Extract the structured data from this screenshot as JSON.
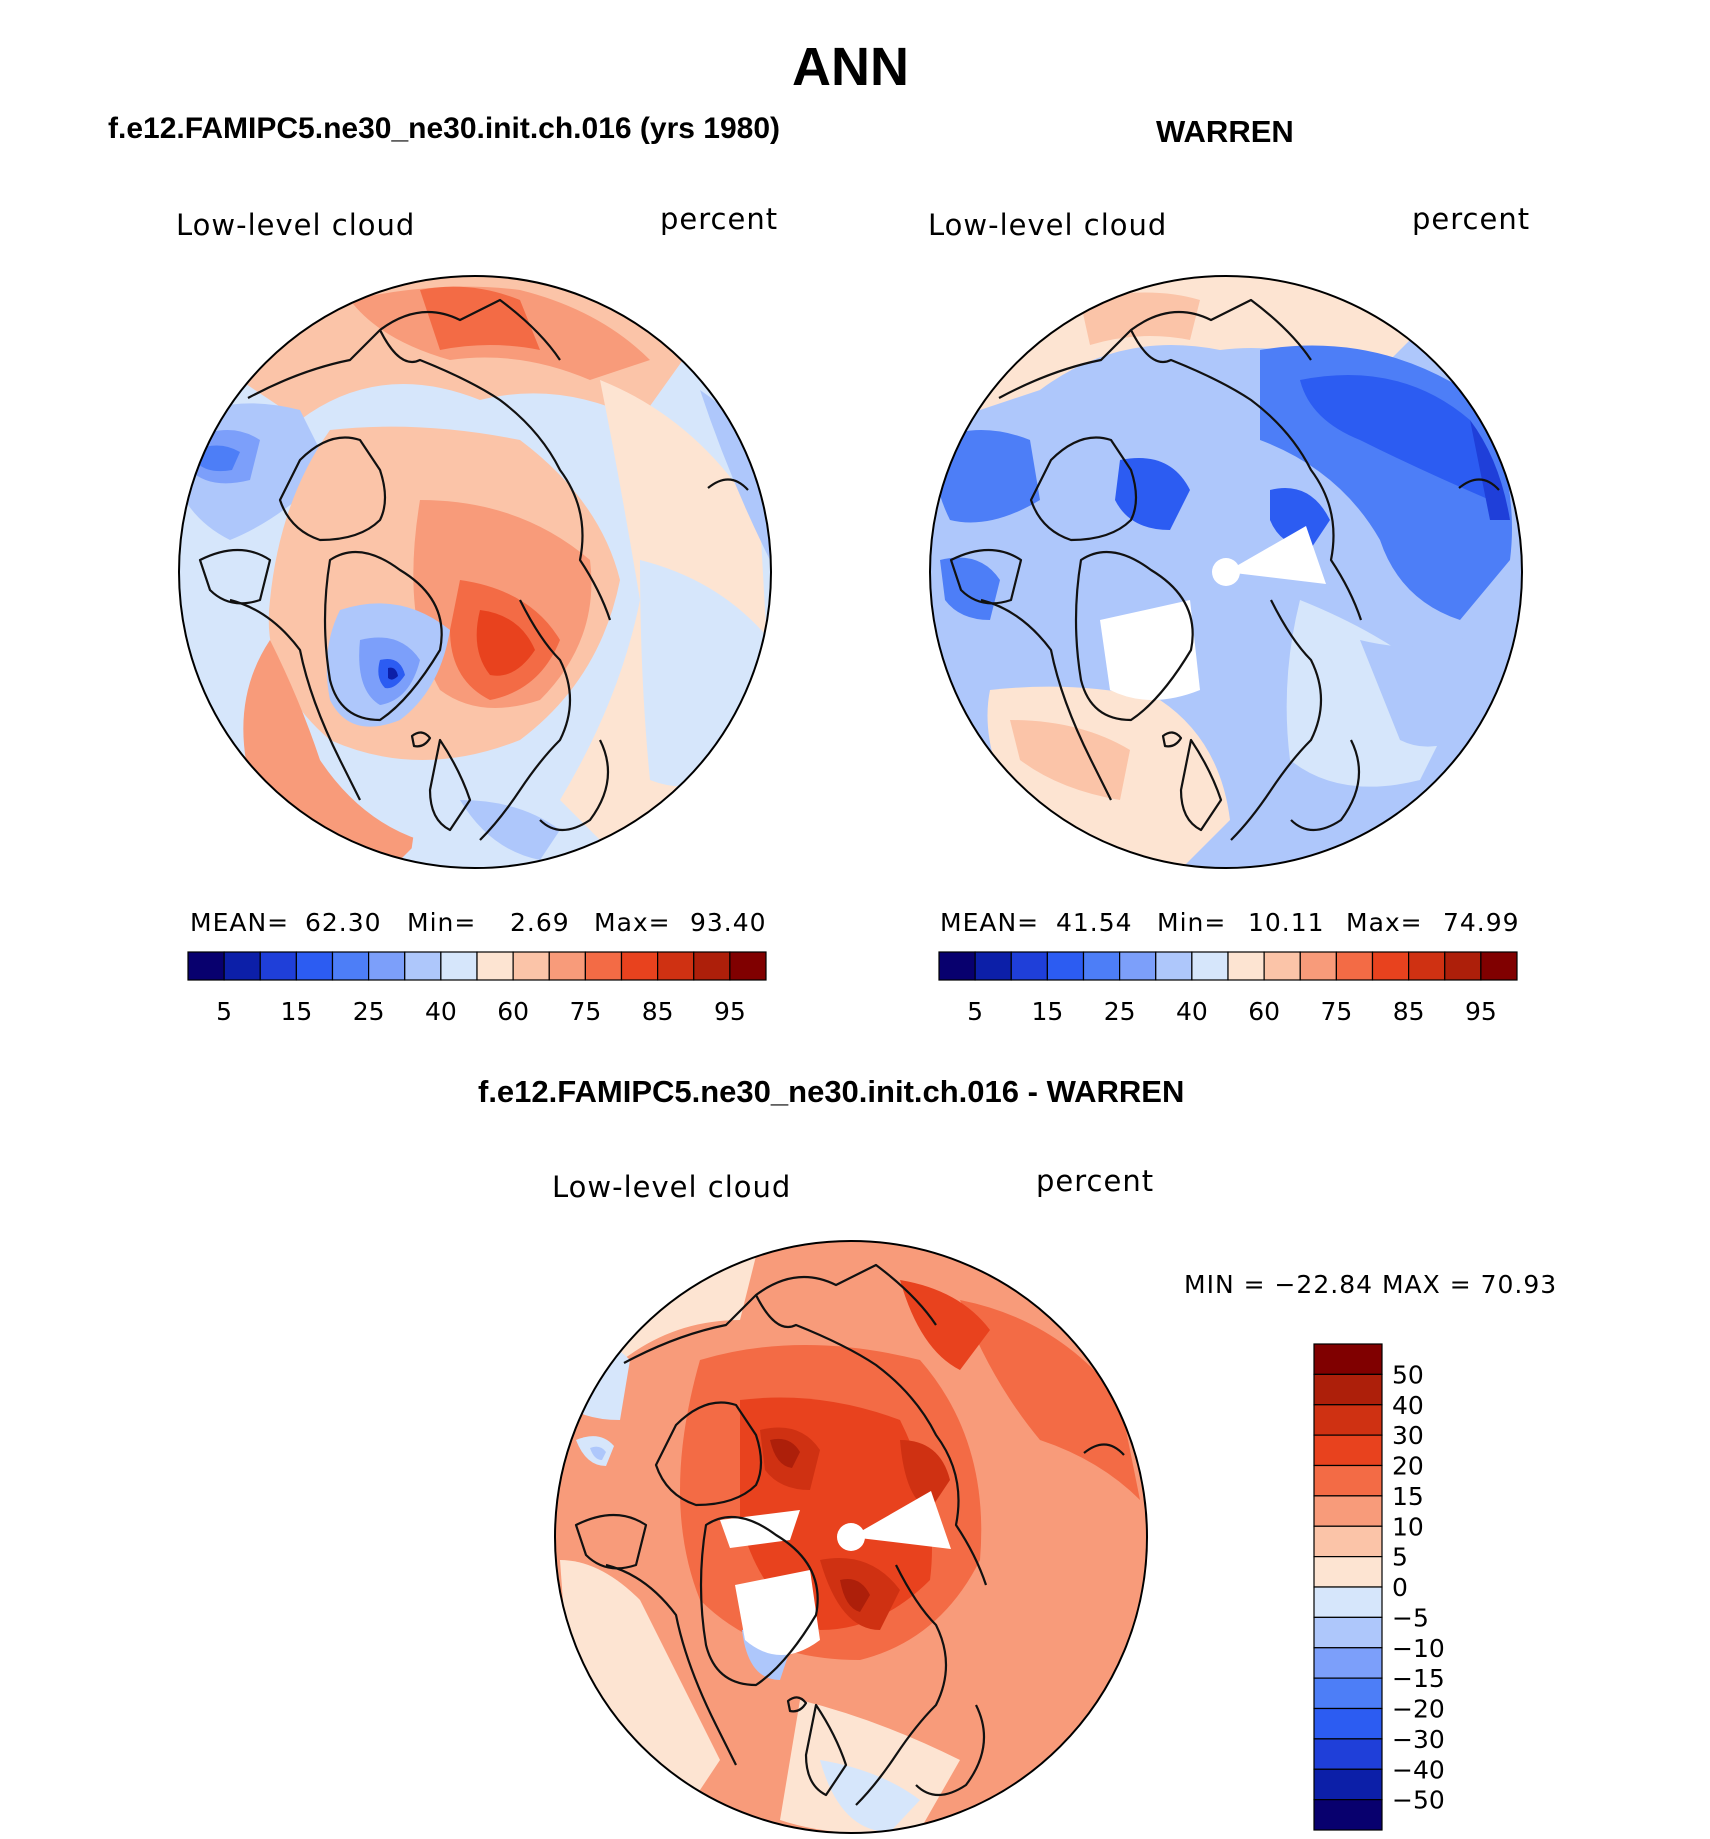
{
  "page_title": "ANN",
  "colors": {
    "abs_scale": [
      "#08006e",
      "#0c1fa8",
      "#1f3fd9",
      "#2c5cf2",
      "#4d7ef7",
      "#7c9ffa",
      "#aec7fb",
      "#d6e6fb",
      "#fde4d2",
      "#fbc4a8",
      "#f89b7a",
      "#f36b45",
      "#e8421e",
      "#cf3112",
      "#ad1f0a",
      "#800000"
    ],
    "diff_scale": [
      "#08006e",
      "#0c1fa8",
      "#1f3fd9",
      "#2c5cf2",
      "#4d7ef7",
      "#7c9ffa",
      "#aec7fb",
      "#d6e6fb",
      "#fde4d2",
      "#fbc4a8",
      "#f89b7a",
      "#f36b45",
      "#e8421e",
      "#cf3112",
      "#ad1f0a",
      "#800000"
    ],
    "coast": "#111111"
  },
  "panels": {
    "model": {
      "title": "f.e12.FAMIPC5.ne30_ne30.init.ch.016 (yrs 1980)",
      "var": "Low-level cloud",
      "units": "percent",
      "stats": {
        "mean_label": "MEAN=",
        "mean": "62.30",
        "min_label": "Min=",
        "min": "2.69",
        "max_label": "Max=",
        "max": "93.40"
      },
      "ticks": [
        "5",
        "15",
        "25",
        "40",
        "60",
        "75",
        "85",
        "95"
      ]
    },
    "obs": {
      "title": "WARREN",
      "var": "Low-level cloud",
      "units": "percent",
      "stats": {
        "mean_label": "MEAN=",
        "mean": "41.54",
        "min_label": "Min=",
        "min": "10.11",
        "max_label": "Max=",
        "max": "74.99"
      },
      "ticks": [
        "5",
        "15",
        "25",
        "40",
        "60",
        "75",
        "85",
        "95"
      ]
    },
    "diff": {
      "title": "f.e12.FAMIPC5.ne30_ne30.init.ch.016 - WARREN",
      "var": "Low-level cloud",
      "units": "percent",
      "minmax": "MIN = −22.84 MAX =  70.93",
      "ticks": [
        "50",
        "40",
        "30",
        "20",
        "15",
        "10",
        "5",
        "0",
        "−5",
        "−10",
        "−15",
        "−20",
        "−30",
        "−40",
        "−50"
      ]
    }
  },
  "chart_data": [
    {
      "type": "heatmap",
      "projection": "north polar stereographic",
      "title": "f.e12.FAMIPC5.ne30_ne30.init.ch.016 (yrs 1980)",
      "variable": "Low-level cloud",
      "units": "percent",
      "mean": 62.3,
      "min": 2.69,
      "max": 93.4,
      "contour_levels": [
        5,
        10,
        15,
        20,
        25,
        30,
        40,
        50,
        60,
        65,
        75,
        80,
        85,
        90,
        95
      ],
      "colorbar_labels": [
        5,
        15,
        25,
        40,
        60,
        75,
        85,
        95
      ]
    },
    {
      "type": "heatmap",
      "projection": "north polar stereographic",
      "title": "WARREN",
      "variable": "Low-level cloud",
      "units": "percent",
      "mean": 41.54,
      "min": 10.11,
      "max": 74.99,
      "contour_levels": [
        5,
        10,
        15,
        20,
        25,
        30,
        40,
        50,
        60,
        65,
        75,
        80,
        85,
        90,
        95
      ],
      "colorbar_labels": [
        5,
        15,
        25,
        40,
        60,
        75,
        85,
        95
      ]
    },
    {
      "type": "heatmap",
      "projection": "north polar stereographic",
      "title": "f.e12.FAMIPC5.ne30_ne30.init.ch.016 - WARREN",
      "variable": "Low-level cloud",
      "units": "percent",
      "min": -22.84,
      "max": 70.93,
      "contour_levels": [
        -50,
        -40,
        -30,
        -20,
        -15,
        -10,
        -5,
        0,
        5,
        10,
        15,
        20,
        30,
        40,
        50
      ],
      "colorbar_labels": [
        50,
        40,
        30,
        20,
        15,
        10,
        5,
        0,
        -5,
        -10,
        -15,
        -20,
        -30,
        -40,
        -50
      ]
    }
  ]
}
